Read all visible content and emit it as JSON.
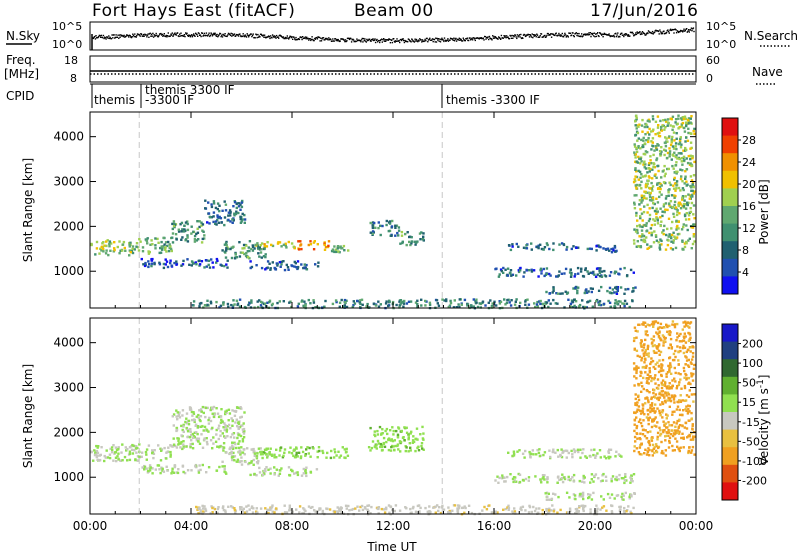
{
  "header": {
    "radar": "Fort Hays East (fitACF)",
    "beam": "Beam 00",
    "date": "17/Jun/2016"
  },
  "side_labels": {
    "nsky": "N.Sky",
    "freq": "Freq.",
    "freq_unit": "[MHz]",
    "cpid": "CPID",
    "nsearch": "N.Search",
    "nave": "Nave"
  },
  "strip_ticks": {
    "noise_left": [
      "10^5",
      "10^0"
    ],
    "noise_right": [
      "10^5",
      "10^0"
    ],
    "freq_left": [
      "18",
      "8"
    ],
    "nave_right": [
      "60",
      "0"
    ]
  },
  "cpid_labels": [
    "themis",
    "themis 3300 IF",
    "-3300 IF",
    "themis -3300 IF"
  ],
  "colors": {
    "power": [
      "#1010f0",
      "#2050b0",
      "#206070",
      "#409070",
      "#60a870",
      "#a0d050",
      "#f0c000",
      "#f09000",
      "#f04000",
      "#e01010"
    ],
    "velocity": [
      "#1818c8",
      "#204080",
      "#306830",
      "#60b030",
      "#90e050",
      "#c8c8c0",
      "#e8c040",
      "#f0a020",
      "#e05010",
      "#e01010"
    ]
  },
  "chart_data": [
    {
      "type": "heatmap",
      "name": "power",
      "xlabel": "",
      "ylabel": "Slant Range [km]",
      "x_ticks": [
        "00:00",
        "04:00",
        "08:00",
        "12:00",
        "16:00",
        "20:00",
        "00:00"
      ],
      "xlim_hours": [
        0,
        24
      ],
      "y_ticks": [
        1000,
        2000,
        3000,
        4000
      ],
      "ylim": [
        180,
        4550
      ],
      "colorbar_label": "Power [dB]",
      "colorbar_ticks": [
        28,
        24,
        20,
        16,
        12,
        8,
        4
      ],
      "colorbar_range": [
        0,
        32
      ],
      "echo_bands": [
        {
          "t0": 0.0,
          "t1": 1.9,
          "r0": 1380,
          "r1": 1720,
          "level": 16
        },
        {
          "t0": 1.9,
          "t1": 3.2,
          "r0": 1400,
          "r1": 1780,
          "level": 14
        },
        {
          "t0": 3.2,
          "t1": 4.5,
          "r0": 1650,
          "r1": 2150,
          "level": 12
        },
        {
          "t0": 4.5,
          "t1": 6.1,
          "r0": 2050,
          "r1": 2600,
          "level": 8
        },
        {
          "t0": 2.0,
          "t1": 5.5,
          "r0": 1100,
          "r1": 1300,
          "level": 6
        },
        {
          "t0": 5.2,
          "t1": 7.0,
          "r0": 1300,
          "r1": 1700,
          "level": 12
        },
        {
          "t0": 6.5,
          "t1": 8.0,
          "r0": 1550,
          "r1": 1680,
          "level": 18
        },
        {
          "t0": 8.0,
          "t1": 9.5,
          "r0": 1500,
          "r1": 1700,
          "level": 24
        },
        {
          "t0": 9.5,
          "t1": 10.2,
          "r0": 1450,
          "r1": 1600,
          "level": 14
        },
        {
          "t0": 6.3,
          "t1": 9.0,
          "r0": 1050,
          "r1": 1250,
          "level": 6
        },
        {
          "t0": 11.0,
          "t1": 12.2,
          "r0": 1800,
          "r1": 2150,
          "level": 10
        },
        {
          "t0": 12.2,
          "t1": 13.2,
          "r0": 1600,
          "r1": 1900,
          "level": 12
        },
        {
          "t0": 16.5,
          "t1": 19.0,
          "r0": 1500,
          "r1": 1650,
          "level": 8
        },
        {
          "t0": 19.0,
          "t1": 21.0,
          "r0": 1450,
          "r1": 1600,
          "level": 6
        },
        {
          "t0": 16.0,
          "t1": 21.5,
          "r0": 900,
          "r1": 1100,
          "level": 7
        },
        {
          "t0": 18.0,
          "t1": 21.6,
          "r0": 520,
          "r1": 680,
          "level": 8
        },
        {
          "t0": 4.0,
          "t1": 21.5,
          "r0": 200,
          "r1": 400,
          "level": 10
        },
        {
          "t0": 21.5,
          "t1": 23.9,
          "r0": 1500,
          "r1": 4500,
          "level": 16
        }
      ]
    },
    {
      "type": "heatmap",
      "name": "velocity",
      "xlabel": "Time UT",
      "ylabel": "Slant Range [km]",
      "x_ticks": [
        "00:00",
        "04:00",
        "08:00",
        "12:00",
        "16:00",
        "20:00",
        "00:00"
      ],
      "xlim_hours": [
        0,
        24
      ],
      "y_ticks": [
        1000,
        2000,
        3000,
        4000
      ],
      "ylim": [
        180,
        4550
      ],
      "colorbar_label": "Velocity [m s^-1]",
      "colorbar_ticks": [
        200,
        100,
        50,
        15,
        -15,
        -50,
        -100,
        -200
      ],
      "colorbar_range": [
        -250,
        250
      ],
      "echo_bands": [
        {
          "t0": 0.0,
          "t1": 3.2,
          "r0": 1380,
          "r1": 1760,
          "level": 0
        },
        {
          "t0": 3.2,
          "t1": 6.1,
          "r0": 1650,
          "r1": 2600,
          "level": 0
        },
        {
          "t0": 2.0,
          "t1": 5.5,
          "r0": 1100,
          "r1": 1300,
          "level": 0
        },
        {
          "t0": 5.2,
          "t1": 7.0,
          "r0": 1300,
          "r1": 1700,
          "level": 0
        },
        {
          "t0": 6.5,
          "t1": 10.2,
          "r0": 1450,
          "r1": 1700,
          "level": 30
        },
        {
          "t0": 6.3,
          "t1": 9.0,
          "r0": 1050,
          "r1": 1250,
          "level": 0
        },
        {
          "t0": 11.0,
          "t1": 13.2,
          "r0": 1600,
          "r1": 2150,
          "level": 30
        },
        {
          "t0": 16.5,
          "t1": 21.0,
          "r0": 1450,
          "r1": 1650,
          "level": 0
        },
        {
          "t0": 16.0,
          "t1": 21.5,
          "r0": 900,
          "r1": 1100,
          "level": 0
        },
        {
          "t0": 18.0,
          "t1": 21.6,
          "r0": 520,
          "r1": 680,
          "level": 0
        },
        {
          "t0": 4.0,
          "t1": 21.5,
          "r0": 200,
          "r1": 400,
          "level": -30
        },
        {
          "t0": 21.5,
          "t1": 23.9,
          "r0": 1500,
          "r1": 4500,
          "level": -120
        }
      ]
    }
  ]
}
